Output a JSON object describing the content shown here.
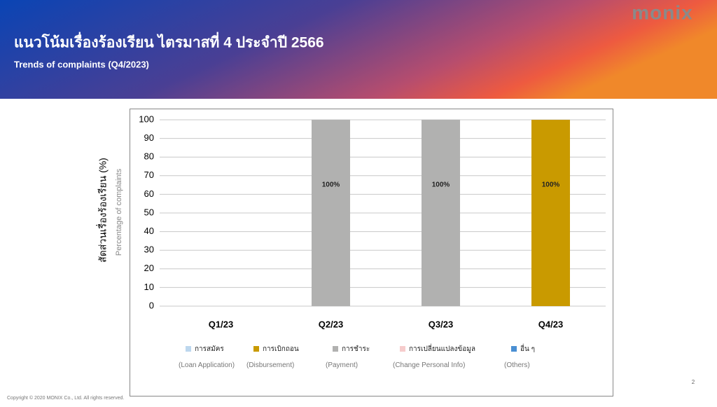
{
  "header": {
    "title": "แนวโน้มเรื่องร้องเรียน ไตรมาสที่ 4 ประจำปี 2566",
    "subtitle": "Trends of complaints (Q4/2023)",
    "logo": "monix"
  },
  "chart_data": {
    "type": "bar",
    "stacked": true,
    "y_label": "สัดส่วนเรื่องร้องเรียน (%)",
    "y_label_en": "Percentage of complaints",
    "categories": [
      "Q1/23",
      "Q2/23",
      "Q3/23",
      "Q4/23"
    ],
    "series": [
      {
        "name": "การสมัคร",
        "name_en": "(Loan Application)",
        "color": "#bdd7ee",
        "values": [
          0,
          0,
          0,
          0
        ],
        "value_labels": [
          null,
          null,
          null,
          null
        ]
      },
      {
        "name": "การเบิกถอน",
        "name_en": "(Disbursement)",
        "color": "#c99a00",
        "values": [
          0,
          0,
          0,
          100
        ],
        "value_labels": [
          null,
          null,
          null,
          "100%"
        ]
      },
      {
        "name": "การชำระ",
        "name_en": "(Payment)",
        "color": "#b1b1b0",
        "values": [
          0,
          100,
          100,
          0
        ],
        "value_labels": [
          null,
          "100%",
          "100%",
          null
        ]
      },
      {
        "name": "การเปลี่ยนแปลงข้อมูล",
        "name_en": "(Change Personal Info)",
        "color": "#f6cccc",
        "values": [
          0,
          0,
          0,
          0
        ],
        "value_labels": [
          null,
          null,
          null,
          null
        ]
      },
      {
        "name": "อื่น ๆ",
        "name_en": "(Others)",
        "color": "#4a8fd3",
        "values": [
          0,
          0,
          0,
          0
        ],
        "value_labels": [
          null,
          null,
          null,
          null
        ]
      }
    ],
    "ylim": [
      0,
      100
    ],
    "yticks": [
      0,
      10,
      20,
      30,
      40,
      50,
      60,
      70,
      80,
      90,
      100
    ],
    "grid": true
  },
  "footer": {
    "copyright": "Copyright © 2020 MONIX Co., Ltd. All rights reserved.",
    "page": "2"
  }
}
